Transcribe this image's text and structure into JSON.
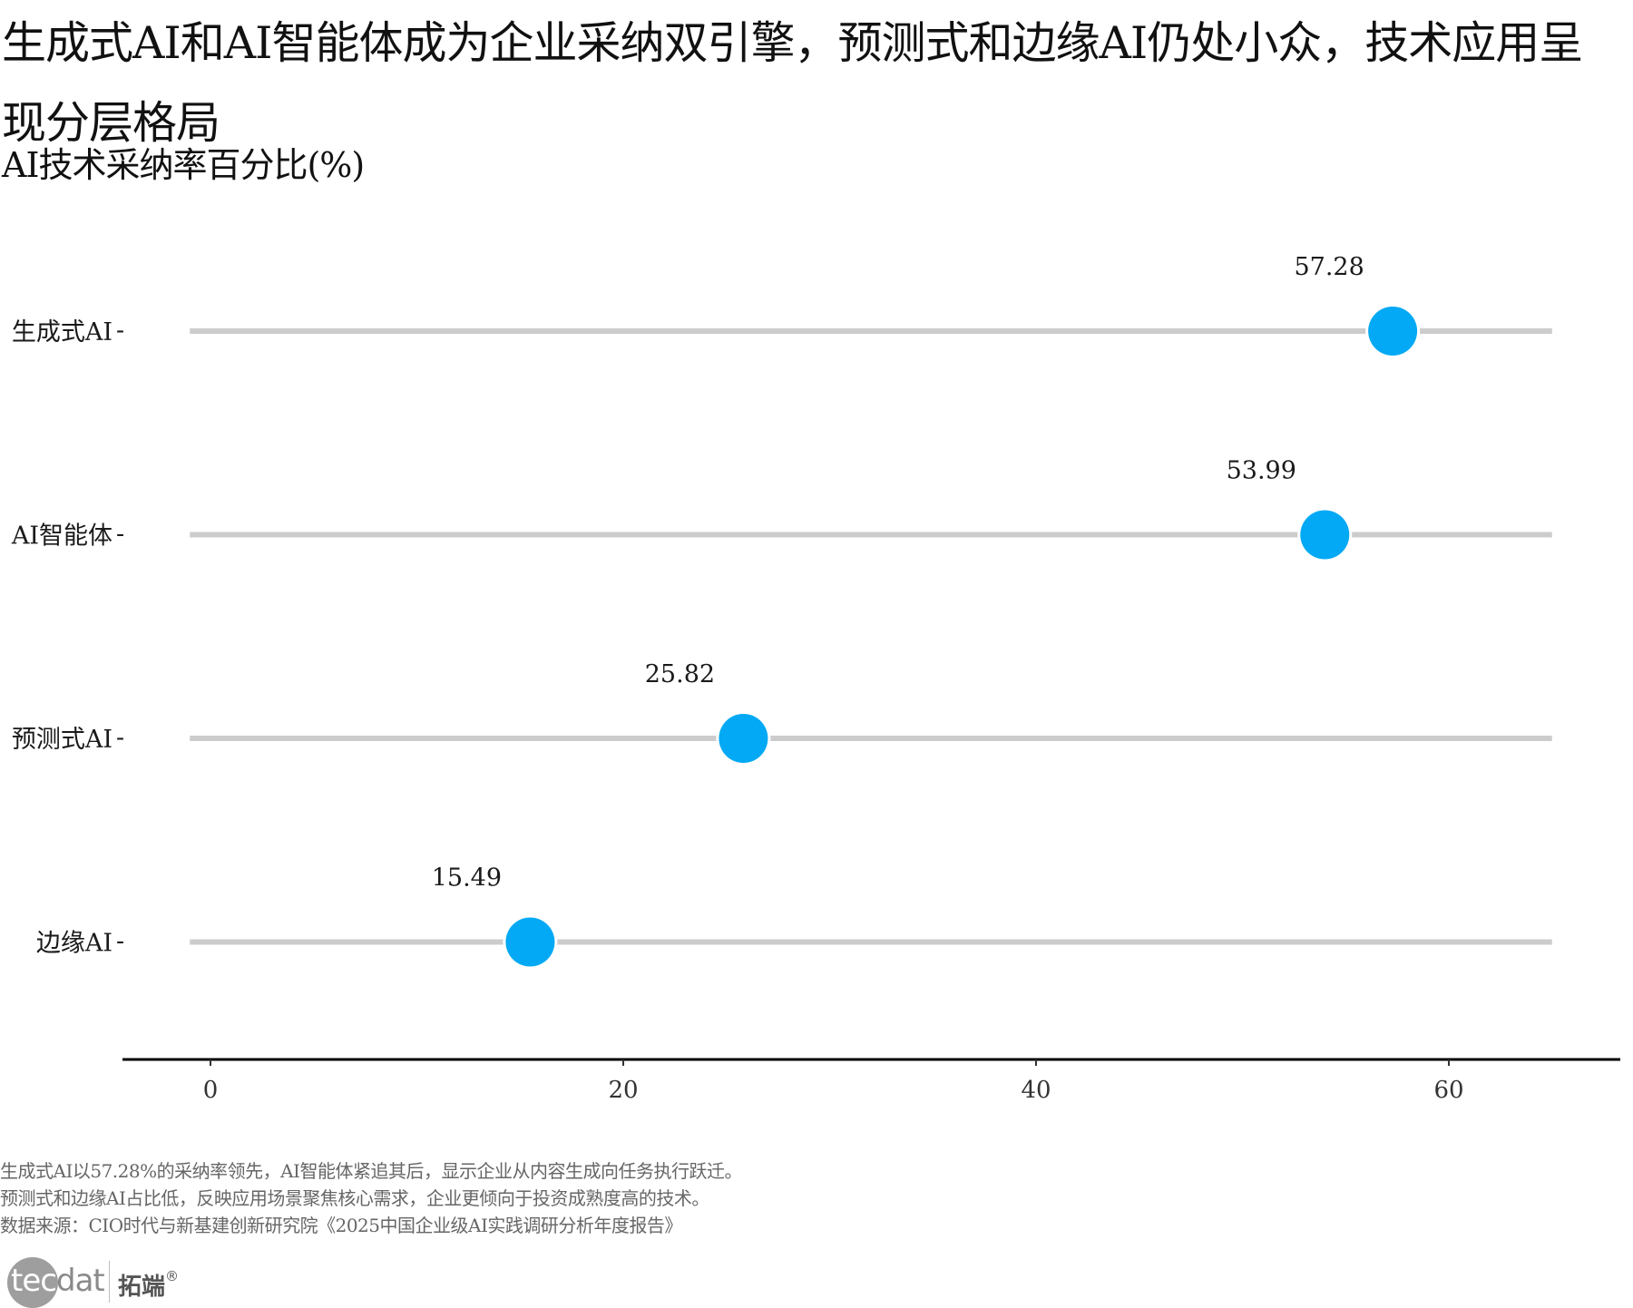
{
  "title": "生成式AI和AI智能体成为企业采纳双引擎，预测式和边缘AI仍处小众，技术应用呈现分层格局",
  "subtitle": "AI技术采纳率百分比(%)",
  "chart_data": {
    "type": "dot",
    "title": "生成式AI和AI智能体成为企业采纳双引擎，预测式和边缘AI仍处小众，技术应用呈现分层格局",
    "subtitle": "AI技术采纳率百分比(%)",
    "categories": [
      "生成式AI",
      "AI智能体",
      "预测式AI",
      "边缘AI"
    ],
    "values": [
      57.28,
      53.99,
      25.82,
      15.49
    ],
    "labels": [
      "57.28",
      "53.99",
      "25.82",
      "15.49"
    ],
    "xlabel": "",
    "ylabel": "",
    "xlim": [
      -4,
      68
    ],
    "track_range": [
      -1,
      65
    ],
    "xticks": [
      0,
      20,
      40,
      60
    ],
    "xtick_labels": [
      "0",
      "20",
      "40",
      "60"
    ],
    "grid": false,
    "legend": "none",
    "colors": {
      "dot": "#03a9f4",
      "track": "#cccccc",
      "axis": "#000000"
    }
  },
  "caption": {
    "lines": [
      "生成式AI以57.28%的采纳率领先，AI智能体紧追其后，显示企业从内容生成向任务执行跃迁。",
      "预测式和边缘AI占比低，反映应用场景聚焦核心需求，企业更倾向于投资成熟度高的技术。",
      "数据来源：CIO时代与新基建创新研究院《2025中国企业级AI实践调研分析年度报告》"
    ]
  },
  "logo": {
    "latin_part1": "tec",
    "latin_part2": "dat",
    "chinese": "拓端",
    "mark": "®"
  }
}
